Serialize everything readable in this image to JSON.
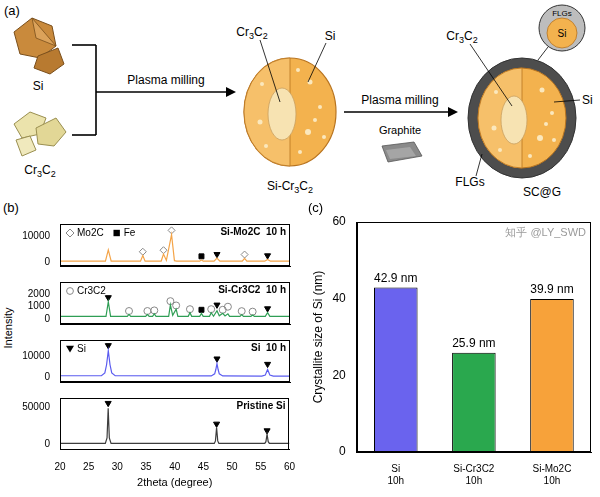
{
  "diagram": {
    "panel_label": "(a)",
    "inputs": [
      "Si",
      "Cr3C2"
    ],
    "steps": [
      "Plasma milling",
      "Plasma milling"
    ],
    "additive": "Graphite",
    "intermediate": {
      "name": "Si-Cr3C2",
      "parts": [
        "Cr3C2",
        "Si"
      ]
    },
    "product": {
      "name": "SC@G",
      "parts": [
        "Cr3C2",
        "Si",
        "FLGs"
      ],
      "inset": [
        "FLGs",
        "Si"
      ]
    }
  },
  "chart_data": [
    {
      "type": "line",
      "panel_label": "(b)",
      "y_label": "Intensity",
      "x_label": "2theta (degree)",
      "xlim": [
        20,
        60
      ],
      "xticks": [
        20,
        25,
        30,
        35,
        40,
        45,
        50,
        55,
        60
      ],
      "grid": false,
      "subplots": [
        {
          "title": "Si-Mo2C  10 h",
          "ylim": [
            -1500,
            15000
          ],
          "yticks": [
            0,
            10000
          ],
          "tick_labels": "y",
          "legend": "upper left",
          "series": [
            {
              "type": "line",
              "color": "#f4a448",
              "x": [
                20,
                27.9,
                28.4,
                28.9,
                34.0,
                34.4,
                34.8,
                37.6,
                38.0,
                38.5,
                39.4,
                39.9,
                40.3,
                44.3,
                44.6,
                44.9,
                46.8,
                47.3,
                47.8,
                51.7,
                52.1,
                52.5,
                55.6,
                56.1,
                56.6,
                60
              ],
              "values": [
                400,
                400,
                4800,
                400,
                400,
                2600,
                400,
                450,
                3200,
                700,
                10800,
                600,
                400,
                400,
                900,
                400,
                400,
                1600,
                400,
                400,
                1500,
                400,
                400,
                1100,
                400,
                400
              ]
            },
            {
              "name": "Mo2C",
              "type": "scatter",
              "marker": "diamond",
              "color": "#888888",
              "x": [
                34.4,
                38.0,
                39.4,
                52.1
              ],
              "values": [
                4100,
                4700,
                12500,
                3000
              ]
            },
            {
              "name": "Fe",
              "type": "scatter",
              "marker": "square",
              "color": "#000000",
              "x": [
                44.6
              ],
              "values": [
                2300
              ]
            },
            {
              "type": "scatter",
              "marker": "triangle_down",
              "color": "#000000",
              "x": [
                47.3,
                56.1
              ],
              "values": [
                3100,
                2600
              ]
            }
          ]
        },
        {
          "title": "Si-Cr3C2  10 h",
          "ylim": [
            -400,
            3000
          ],
          "yticks": [
            0,
            1000,
            2000
          ],
          "tick_labels": "y",
          "legend": "upper left",
          "series": [
            {
              "type": "line",
              "color": "#2f9e55",
              "x": [
                20,
                28.0,
                28.4,
                28.8,
                31.7,
                32.0,
                32.3,
                34.9,
                35.2,
                35.5,
                36.1,
                36.4,
                36.7,
                38.9,
                39.2,
                39.6,
                40.2,
                40.5,
                42.3,
                42.6,
                42.9,
                44.3,
                44.6,
                44.9,
                46.0,
                46.3,
                46.7,
                47.3,
                47.7,
                48.3,
                48.7,
                49.2,
                49.5,
                51.3,
                51.6,
                51.9,
                53.2,
                53.5,
                53.8,
                55.7,
                56.1,
                56.5,
                60
              ],
              "values": [
                220,
                220,
                1400,
                220,
                220,
                380,
                220,
                220,
                380,
                220,
                220,
                420,
                220,
                220,
                1150,
                300,
                800,
                220,
                220,
                520,
                220,
                220,
                450,
                220,
                220,
                520,
                230,
                680,
                260,
                470,
                250,
                420,
                220,
                220,
                360,
                220,
                220,
                320,
                220,
                220,
                520,
                220,
                220
              ]
            },
            {
              "name": "Cr3C2",
              "type": "scatter",
              "marker": "circle",
              "color": "#888888",
              "x": [
                32.0,
                35.2,
                36.4,
                39.2,
                40.2,
                42.6,
                46.3,
                48.3,
                49.2,
                51.6,
                53.5
              ],
              "values": [
                650,
                650,
                700,
                1450,
                1100,
                800,
                800,
                750,
                1000,
                640,
                600
              ]
            },
            {
              "type": "scatter",
              "marker": "square",
              "color": "#000000",
              "x": [
                44.6
              ],
              "values": [
                750
              ]
            },
            {
              "type": "scatter",
              "marker": "triangle_down",
              "color": "#000000",
              "x": [
                28.4,
                47.3,
                56.1
              ],
              "values": [
                1750,
                1150,
                850
              ]
            }
          ]
        },
        {
          "title": "Si  10 h",
          "ylim": [
            -2000,
            17500
          ],
          "yticks": [
            0,
            10000
          ],
          "tick_labels": "y",
          "legend": "upper left",
          "series": [
            {
              "type": "line",
              "color": "#5b5cf0",
              "x": [
                20,
                27.2,
                27.8,
                28.1,
                28.4,
                28.7,
                29.0,
                29.6,
                46.3,
                46.9,
                47.1,
                47.3,
                47.5,
                47.7,
                48.3,
                55.1,
                55.7,
                55.9,
                56.1,
                56.3,
                56.5,
                57.1,
                60
              ],
              "values": [
                900,
                900,
                2200,
                6000,
                12500,
                6000,
                2200,
                900,
                800,
                1800,
                3800,
                6500,
                3800,
                1800,
                800,
                700,
                1200,
                2500,
                3800,
                2500,
                1200,
                700,
                700
              ]
            },
            {
              "name": "Si",
              "type": "scatter",
              "marker": "triangle_down",
              "color": "#000000",
              "x": [
                28.4,
                47.3,
                56.1
              ],
              "values": [
                15000,
                8800,
                6300
              ]
            }
          ]
        },
        {
          "title": "Pristine Si",
          "ylim": [
            -8000,
            62000
          ],
          "yticks": [
            0,
            50000
          ],
          "series": [
            {
              "type": "line",
              "color": "#3d3d3d",
              "x": [
                20,
                27.9,
                28.2,
                28.4,
                28.6,
                28.9,
                46.9,
                47.1,
                47.3,
                47.5,
                47.7,
                55.7,
                55.9,
                56.1,
                56.3,
                56.5,
                60
              ],
              "values": [
                600,
                600,
                8000,
                48000,
                8000,
                600,
                600,
                4000,
                22000,
                4000,
                600,
                600,
                3000,
                13000,
                3000,
                600,
                600
              ]
            },
            {
              "type": "scatter",
              "marker": "triangle_down",
              "color": "#000000",
              "x": [
                28.4,
                47.3,
                56.1
              ],
              "values": [
                55000,
                27000,
                18000
              ]
            }
          ]
        }
      ]
    },
    {
      "type": "bar",
      "panel_label": "(c)",
      "y_label": "Crystallite size of Si (nm)",
      "categories": [
        "Si 10h",
        "Si-Cr3C2 10h",
        "Si-Mo2C 10h"
      ],
      "values": [
        42.9,
        25.9,
        39.9
      ],
      "value_labels": [
        "42.9 nm",
        "25.9 nm",
        "39.9 nm"
      ],
      "data_labels": true,
      "colors": [
        "#6a63ee",
        "#2aa84e",
        "#f7a23a"
      ],
      "ylim": [
        0,
        60
      ],
      "yticks": [
        0,
        20,
        40,
        60
      ],
      "grid": false,
      "annotations": [
        "知乎 @LY_SWD"
      ]
    }
  ]
}
